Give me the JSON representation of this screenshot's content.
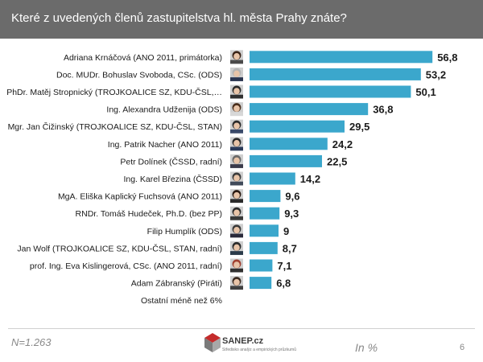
{
  "header": {
    "title": "Které z uvedených členů zastupitelstva hl. města Prahy znáte?"
  },
  "footer": {
    "n_label": "N=1.263",
    "unit_label": "In %",
    "page_number": "6",
    "logo_text": "SANEP.cz",
    "logo_tagline": "Středisko analýz a empirických průzkumů"
  },
  "colors": {
    "header_bg": "#6b6b6b",
    "bar": "#3ba7cc",
    "text": "#1a1a1a"
  },
  "chart_data": {
    "type": "bar",
    "orientation": "horizontal",
    "title": "Které z uvedených členů zastupitelstva hl. města Prahy znáte?",
    "unit": "In %",
    "xlim": [
      0,
      60
    ],
    "categories": [
      "Adriana Krnáčová (ANO 2011, primátorka)",
      "Doc. MUDr. Bohuslav Svoboda, CSc. (ODS)",
      "PhDr. Matěj Stropnický (TROJKOALICE SZ, KDU-ČSL,…",
      "Ing. Alexandra Udženija (ODS)",
      "Mgr. Jan Čižinský (TROJKOALICE SZ, KDU-ČSL, STAN)",
      "Ing. Patrik Nacher (ANO 2011)",
      "Petr Dolínek (ČSSD, radní)",
      "Ing. Karel Březina (ČSSD)",
      "MgA. Eliška Kaplický Fuchsová (ANO 2011)",
      "RNDr. Tomáš Hudeček, Ph.D. (bez PP)",
      "Filip Humplík (ODS)",
      "Jan Wolf (TROJKOALICE SZ, KDU-ČSL, STAN, radní)",
      "prof. Ing. Eva Kislingerová, CSc. (ANO 2011, radní)",
      "Adam Zábranský (Piráti)",
      "Ostatní méně než 6%"
    ],
    "values": [
      56.8,
      53.2,
      50.1,
      36.8,
      29.5,
      24.2,
      22.5,
      14.2,
      9.6,
      9.3,
      9,
      8.7,
      7.1,
      6.8,
      null
    ],
    "value_labels": [
      "56,8",
      "53,2",
      "50,1",
      "36,8",
      "29,5",
      "24,2",
      "22,5",
      "14,2",
      "9,6",
      "9,3",
      "9",
      "8,7",
      "7,1",
      "6,8",
      ""
    ],
    "has_photo": [
      true,
      true,
      true,
      true,
      true,
      true,
      true,
      true,
      true,
      true,
      true,
      true,
      true,
      true,
      false
    ],
    "photo_hair": [
      "#3a2418",
      "#b5b5b5",
      "#2a2a2a",
      "#4a2e1c",
      "#2a2a2a",
      "#2a2a2a",
      "#6a6a6a",
      "#3a3a3a",
      "#2a1a12",
      "#2a2a2a",
      "#3a3a3a",
      "#2a2a2a",
      "#a04030",
      "#3a2a20",
      ""
    ],
    "photo_shirt": [
      "#4a4a4a",
      "#2a3550",
      "#303030",
      "#d8d8d8",
      "#3a4a6a",
      "#2a3a5a",
      "#3a3a4a",
      "#404a5a",
      "#2a2a2a",
      "#3a3a3a",
      "#2a2a3a",
      "#2a3a4a",
      "#303030",
      "#404040",
      ""
    ],
    "grid": false,
    "legend": "none"
  }
}
